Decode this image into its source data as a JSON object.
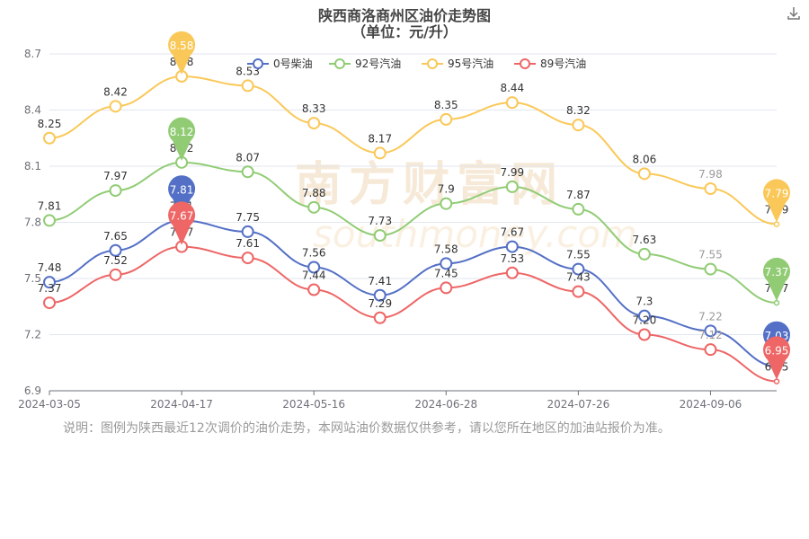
{
  "header": {
    "title": "陕西商洛商州区油价走势图",
    "subtitle": "（单位：元/升）",
    "download_icon": "download-icon"
  },
  "watermark": {
    "text": "南方财富网",
    "sub": "southmoney.com"
  },
  "note": "说明：图例为陕西最近12次调价的油价走势，本网站油价数据仅供参考，请以您所在地区的加油站报价为准。",
  "chart_data": {
    "type": "line",
    "title": "陕西商洛商州区油价走势图",
    "subtitle": "（单位：元/升）",
    "xlabel": "",
    "ylabel": "",
    "ylim": [
      6.9,
      8.7
    ],
    "yticks": [
      6.9,
      7.2,
      7.5,
      7.8,
      8.1,
      8.4,
      8.7
    ],
    "x": [
      "2024-03-05",
      "2024-03-19",
      "2024-04-17",
      "2024-05-01",
      "2024-05-16",
      "2024-05-30",
      "2024-06-28",
      "2024-07-12",
      "2024-07-26",
      "2024-08-09",
      "2024-09-06",
      "2024-09-20"
    ],
    "xtick_labels": [
      "2024-03-05",
      "2024-04-17",
      "2024-05-16",
      "2024-06-28",
      "2024-07-26",
      "2024-09-06"
    ],
    "legend_position": "top",
    "grid": true,
    "series": [
      {
        "name": "0号柴油",
        "color": "#5470c6",
        "values": [
          7.48,
          7.65,
          7.81,
          7.75,
          7.56,
          7.41,
          7.58,
          7.67,
          7.55,
          7.3,
          7.22,
          7.03
        ]
      },
      {
        "name": "92号汽油",
        "color": "#91cc75",
        "values": [
          7.81,
          7.97,
          8.12,
          8.07,
          7.88,
          7.73,
          7.9,
          7.99,
          7.87,
          7.63,
          7.55,
          7.37
        ]
      },
      {
        "name": "95号汽油",
        "color": "#fac858",
        "values": [
          8.25,
          8.42,
          8.58,
          8.53,
          8.33,
          8.17,
          8.35,
          8.44,
          8.32,
          8.06,
          7.98,
          7.79
        ]
      },
      {
        "name": "89号汽油",
        "color": "#ee6666",
        "values": [
          7.37,
          7.52,
          7.67,
          7.61,
          7.44,
          7.29,
          7.45,
          7.53,
          7.43,
          7.2,
          7.12,
          6.95
        ]
      }
    ],
    "data_labels": {
      "0号柴油": [
        "7.48",
        "7.65",
        "7.81",
        "7.75",
        "7.56",
        "7.41",
        "7.58",
        "7.67",
        "7.55",
        "7.3",
        "7.22",
        "7.03"
      ],
      "92号汽油": [
        "7.81",
        "7.97",
        "8.12",
        "8.07",
        "7.88",
        "7.73",
        "7.9",
        "7.99",
        "7.87",
        "7.63",
        "7.55",
        "7.37"
      ],
      "95号汽油": [
        "8.25",
        "8.42",
        "8.58",
        "8.53",
        "8.33",
        "8.17",
        "8.35",
        "8.44",
        "8.32",
        "8.06",
        "7.98",
        "7.79"
      ],
      "89号汽油": [
        "7.37",
        "7.52",
        "7.67",
        "7.61",
        "7.44",
        "7.29",
        "7.45",
        "7.53",
        "7.43",
        "7.20",
        "7.12",
        "6.95"
      ]
    }
  }
}
